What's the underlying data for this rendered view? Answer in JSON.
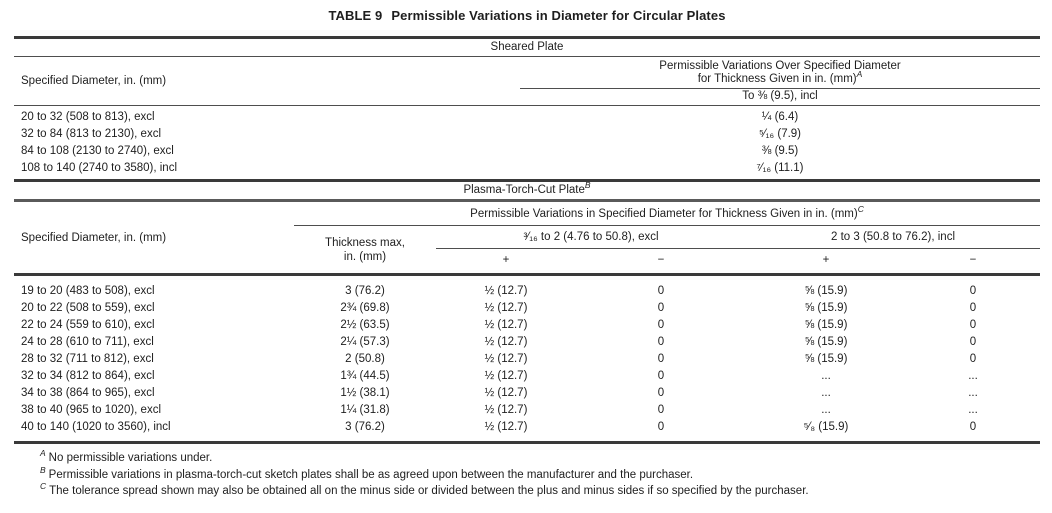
{
  "title": {
    "label": "TABLE 9",
    "text": "Permissible Variations in Diameter for Circular Plates"
  },
  "sheared": {
    "section_label": "Sheared Plate",
    "diameter_header": "Specified Diameter, in. (mm)",
    "group_header_line1": "Permissible Variations Over Specified Diameter",
    "group_header_line2": "for Thickness Given in in. (mm)",
    "group_header_sup": "A",
    "sub_header": "To ⅜  (9.5), incl",
    "rows": [
      {
        "diameter": "20 to 32 (508 to 813), excl",
        "value": "¼  (6.4)"
      },
      {
        "diameter": "32 to 84 (813 to 2130), excl",
        "value": "⁵⁄₁₆ (7.9)"
      },
      {
        "diameter": "84 to 108 (2130 to 2740), excl",
        "value": "⅜   (9.5)"
      },
      {
        "diameter": "108 to 140 (2740 to 3580), incl",
        "value": "⁷⁄₁₆  (11.1)"
      }
    ]
  },
  "plasma": {
    "section_label": "Plasma-Torch-Cut Plate",
    "section_sup": "B",
    "span_header": "Permissible Variations in Specified Diameter for Thickness Given in in. (mm)",
    "span_header_sup": "C",
    "diameter_header": "Specified Diameter, in. (mm)",
    "thickness_header_line1": "Thickness max,",
    "thickness_header_line2": "in. (mm)",
    "group1_header": "³⁄₁₆ to 2 (4.76 to 50.8), excl",
    "group2_header": "2 to 3 (50.8 to 76.2), incl",
    "plus_sign": "+",
    "minus_sign": "−",
    "rows": [
      {
        "diameter": "19 to 20 (483 to 508), excl",
        "thickness": "3 (76.2)",
        "g1_plus": "½  (12.7)",
        "g1_minus": "0",
        "g2_plus": "⅝  (15.9)",
        "g2_minus": "0"
      },
      {
        "diameter": "20 to 22 (508 to 559), excl",
        "thickness": "2¾  (69.8)",
        "g1_plus": "½  (12.7)",
        "g1_minus": "0",
        "g2_plus": "⅝  (15.9)",
        "g2_minus": "0"
      },
      {
        "diameter": "22 to 24 (559 to 610), excl",
        "thickness": "2½  (63.5)",
        "g1_plus": "½ (12.7)",
        "g1_minus": "0",
        "g2_plus": "⅝  (15.9)",
        "g2_minus": "0"
      },
      {
        "diameter": "24 to 28 (610 to 711), excl",
        "thickness": "2¼  (57.3)",
        "g1_plus": "½ (12.7)",
        "g1_minus": "0",
        "g2_plus": "⅝  (15.9)",
        "g2_minus": "0"
      },
      {
        "diameter": "28 to 32 (711 to 812), excl",
        "thickness": "2 (50.8)",
        "g1_plus": "½  (12.7)",
        "g1_minus": "0",
        "g2_plus": "⅝  (15.9)",
        "g2_minus": "0"
      },
      {
        "diameter": "32 to 34 (812 to 864), excl",
        "thickness": "1¾  (44.5)",
        "g1_plus": "½ (12.7)",
        "g1_minus": "0",
        "g2_plus": "...",
        "g2_minus": "..."
      },
      {
        "diameter": "34 to 38 (864 to 965), excl",
        "thickness": "1½  (38.1)",
        "g1_plus": "½ (12.7)",
        "g1_minus": "0",
        "g2_plus": "...",
        "g2_minus": "..."
      },
      {
        "diameter": "38 to 40 (965 to 1020), excl",
        "thickness": "1¼  (31.8)",
        "g1_plus": "½  (12.7)",
        "g1_minus": "0",
        "g2_plus": "...",
        "g2_minus": "..."
      },
      {
        "diameter": "40 to 140 (1020 to 3560), incl",
        "thickness": "3 (76.2)",
        "g1_plus": "½  (12.7)",
        "g1_minus": "0",
        "g2_plus": "⁵⁄₈  (15.9)",
        "g2_minus": "0"
      }
    ]
  },
  "footnotes": [
    {
      "sup": "A",
      "text": "No permissible variations under."
    },
    {
      "sup": "B",
      "text": "Permissible variations in plasma-torch-cut sketch plates shall be as agreed upon between the manufacturer and the purchaser."
    },
    {
      "sup": "C",
      "text": "The tolerance spread shown may also be obtained all on the minus side or divided between the plus and minus sides if so specified by the purchaser."
    }
  ]
}
